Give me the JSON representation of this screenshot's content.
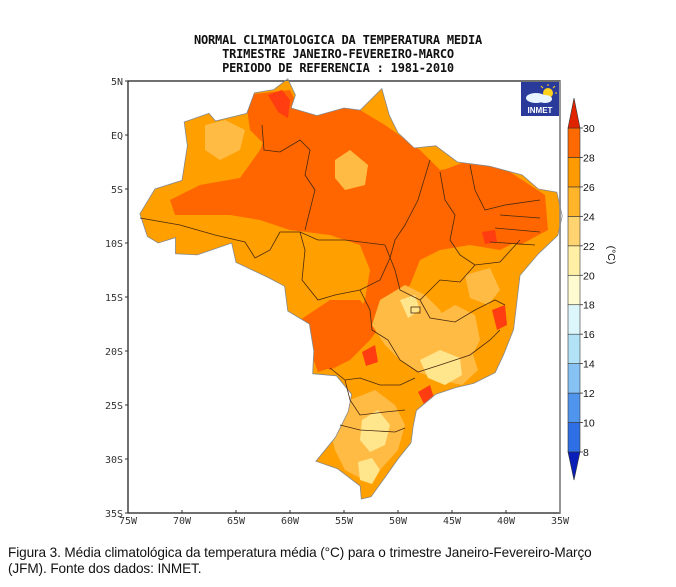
{
  "chart_data": {
    "type": "heatmap",
    "title_lines": [
      "NORMAL CLIMATOLOGICA DA TEMPERATURA MEDIA",
      "TRIMESTRE JANEIRO-FEVEREIRO-MARCO",
      "PERIODO DE REFERENCIA : 1981-2010"
    ],
    "y_ticks": [
      "5N",
      "EQ",
      "5S",
      "10S",
      "15S",
      "20S",
      "25S",
      "30S",
      "35S"
    ],
    "y_values": [
      5,
      0,
      -5,
      -10,
      -15,
      -20,
      -25,
      -30,
      -35
    ],
    "x_ticks": [
      "75W",
      "70W",
      "65W",
      "60W",
      "55W",
      "50W",
      "45W",
      "40W",
      "35W"
    ],
    "x_values": [
      -75,
      -70,
      -65,
      -60,
      -55,
      -50,
      -45,
      -40,
      -35
    ],
    "xlim": [
      -75,
      -35
    ],
    "ylim": [
      -35,
      5
    ],
    "colorbar": {
      "unit_label": "(°C)",
      "levels": [
        8,
        10,
        12,
        14,
        16,
        18,
        20,
        22,
        24,
        26,
        28,
        30
      ],
      "colors": [
        "#1f5fe0",
        "#3f86ec",
        "#6aaaf2",
        "#9fd2f5",
        "#c8ecf7",
        "#eefcfe",
        "#fffcc8",
        "#ffe58c",
        "#ffbb44",
        "#ff9f00",
        "#ff6600",
        "#ff3d10",
        "#e02400"
      ],
      "under_color": "#0a1eb8",
      "over_color": "#e02400"
    },
    "region": "Brazil",
    "value_range_observed": [
      20,
      30
    ]
  },
  "logo": {
    "text": "INMET"
  },
  "caption": {
    "line1": "Figura 3. Média climatológica da temperatura média (°C) para o trimestre Janeiro-Fevereiro-Março",
    "line2": "(JFM). Fonte dos dados: INMET."
  }
}
